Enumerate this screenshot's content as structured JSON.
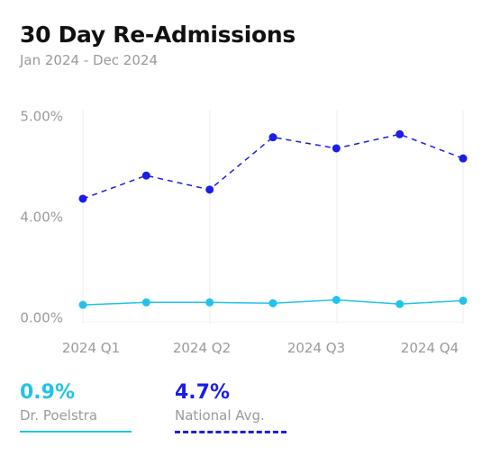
{
  "header": {
    "title": "30 Day Re-Admissions",
    "subtitle": "Jan 2024 - Dec 2024"
  },
  "legend": [
    {
      "value": "0.9%",
      "label": "Dr. Poelstra",
      "color": "#22c3ea"
    },
    {
      "value": "4.7%",
      "label": "National Avg.",
      "color": "#1a1ee6"
    }
  ],
  "chart_data": {
    "type": "line",
    "title": "30 Day Re-Admissions",
    "subtitle": "Jan 2024 - Dec 2024",
    "x_tick_labels": [
      "2024 Q1",
      "2024 Q2",
      "2024 Q3",
      "2024 Q4"
    ],
    "y_tick_labels": [
      "5.00%",
      "4.00%",
      "0.00%"
    ],
    "y_axis_break": true,
    "grid": "vertical",
    "series": [
      {
        "name": "National Avg.",
        "color": "#1a1ee6",
        "dash": true,
        "points": [
          {
            "x": 0,
            "y": 4.17
          },
          {
            "x": 1,
            "y": 4.4
          },
          {
            "x": 2,
            "y": 4.26
          },
          {
            "x": 3,
            "y": 4.78
          },
          {
            "x": 4,
            "y": 4.67
          },
          {
            "x": 5,
            "y": 4.81
          },
          {
            "x": 6,
            "y": 4.57
          }
        ]
      },
      {
        "name": "Dr. Poelstra",
        "color": "#22c3ea",
        "dash": false,
        "points": [
          {
            "x": 0,
            "y": 0.7
          },
          {
            "x": 1,
            "y": 0.85
          },
          {
            "x": 2,
            "y": 0.85
          },
          {
            "x": 3,
            "y": 0.8
          },
          {
            "x": 4,
            "y": 1.0
          },
          {
            "x": 5,
            "y": 0.75
          },
          {
            "x": 6,
            "y": 0.95
          }
        ]
      }
    ]
  }
}
